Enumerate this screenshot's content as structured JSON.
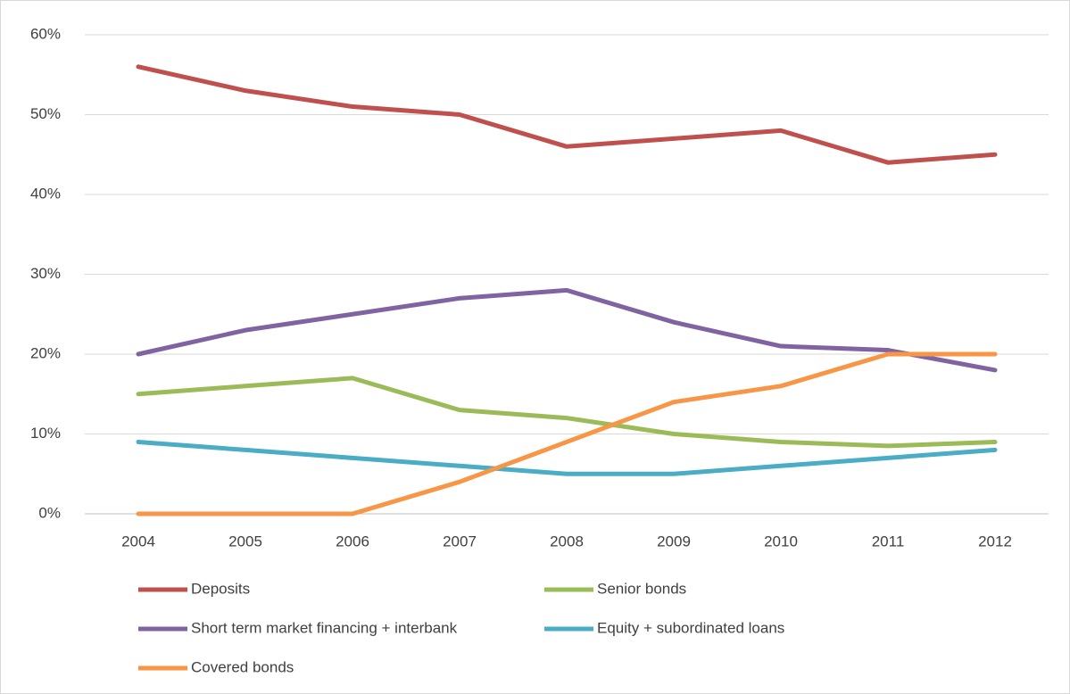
{
  "chart_data": {
    "type": "line",
    "categories": [
      "2004",
      "2005",
      "2006",
      "2007",
      "2008",
      "2009",
      "2010",
      "2011",
      "2012"
    ],
    "series": [
      {
        "name": "Deposits",
        "color": "#c0504d",
        "values": [
          56,
          53,
          51,
          50,
          46,
          47,
          48,
          44,
          45
        ]
      },
      {
        "name": "Senior bonds",
        "color": "#9bbb59",
        "values": [
          15,
          16,
          17,
          13,
          12,
          10,
          9,
          8.5,
          9
        ]
      },
      {
        "name": "Short term market financing + interbank",
        "color": "#8064a2",
        "values": [
          20,
          23,
          25,
          27,
          28,
          24,
          21,
          20.5,
          18
        ]
      },
      {
        "name": "Equity + subordinated loans",
        "color": "#4bacc6",
        "values": [
          9,
          8,
          7,
          6,
          5,
          5,
          6,
          7,
          8
        ]
      },
      {
        "name": "Covered bonds",
        "color": "#f79646",
        "values": [
          0,
          0,
          0,
          4,
          9,
          14,
          16,
          20,
          20
        ]
      }
    ],
    "ylim": [
      0,
      60
    ],
    "yticks": [
      {
        "value": 0,
        "label": "0%"
      },
      {
        "value": 10,
        "label": "10%"
      },
      {
        "value": 20,
        "label": "20%"
      },
      {
        "value": 30,
        "label": "30%"
      },
      {
        "value": 40,
        "label": "40%"
      },
      {
        "value": 50,
        "label": "50%"
      },
      {
        "value": 60,
        "label": "60%"
      }
    ],
    "grid": true,
    "legend": "bottom"
  }
}
